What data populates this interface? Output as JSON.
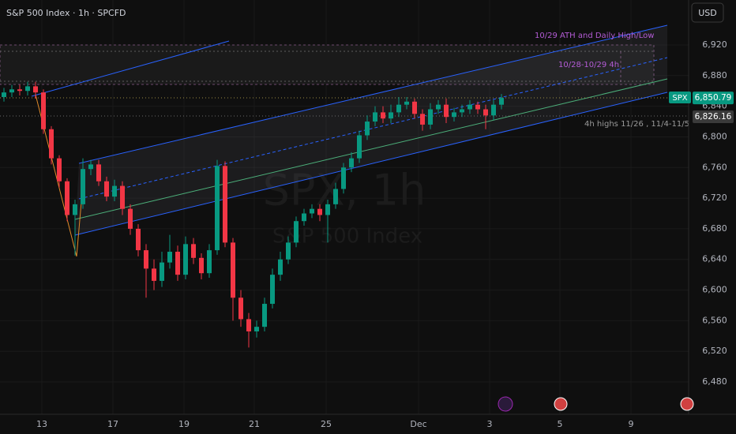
{
  "chart_data": {
    "type": "candlestick",
    "title": "S&P 500 Index · 1h · SPCFD",
    "watermark": "SPX, 1h",
    "watermark_subtitle": "S&P 500 Index",
    "currency": "USD",
    "symbol": "SPX",
    "annotations": [
      "10/29 ATH and Daily High/Low",
      "10/28-10/29 4h",
      "4h highs 11/26 , 11/4-11/5"
    ],
    "up_color": "#089981",
    "down_color": "#f23645",
    "grid": true,
    "open": [
      6852,
      6858,
      6862,
      6860,
      6866,
      6858,
      6810,
      6772,
      6742,
      6698,
      6712,
      6758,
      6764,
      6742,
      6722,
      6736,
      6706,
      6680,
      6652,
      6628,
      6612,
      6636,
      6650,
      6620,
      6660,
      6642,
      6622,
      6652,
      6762,
      6662,
      6590,
      6562,
      6546,
      6552,
      6582,
      6620,
      6640,
      6662,
      6690,
      6700,
      6706,
      6698,
      6712,
      6732,
      6760,
      6772,
      6802,
      6820,
      6832,
      6824,
      6832,
      6842,
      6846,
      6830,
      6816,
      6836,
      6842,
      6826,
      6832,
      6836,
      6842,
      6836,
      6828,
      6842
    ],
    "high": [
      6864,
      6868,
      6868,
      6872,
      6872,
      6862,
      6814,
      6776,
      6746,
      6718,
      6772,
      6770,
      6770,
      6748,
      6744,
      6742,
      6712,
      6686,
      6660,
      6640,
      6650,
      6672,
      6658,
      6670,
      6668,
      6648,
      6660,
      6770,
      6768,
      6668,
      6600,
      6570,
      6560,
      6590,
      6628,
      6650,
      6670,
      6696,
      6706,
      6712,
      6712,
      6718,
      6740,
      6766,
      6780,
      6808,
      6828,
      6840,
      6840,
      6842,
      6852,
      6852,
      6850,
      6836,
      6844,
      6848,
      6850,
      6838,
      6842,
      6848,
      6846,
      6842,
      6848,
      6856
    ],
    "low": [
      6846,
      6852,
      6854,
      6854,
      6850,
      6804,
      6764,
      6734,
      6690,
      6645,
      6706,
      6750,
      6736,
      6716,
      6716,
      6698,
      6672,
      6644,
      6590,
      6600,
      6604,
      6628,
      6612,
      6614,
      6634,
      6614,
      6616,
      6646,
      6656,
      6560,
      6552,
      6525,
      6538,
      6546,
      6576,
      6612,
      6634,
      6656,
      6684,
      6694,
      6690,
      6662,
      6706,
      6726,
      6754,
      6766,
      6796,
      6814,
      6818,
      6818,
      6826,
      6836,
      6824,
      6808,
      6810,
      6830,
      6818,
      6820,
      6826,
      6830,
      6830,
      6810,
      6822,
      6836
    ],
    "close": [
      6858,
      6862,
      6860,
      6866,
      6858,
      6810,
      6772,
      6742,
      6698,
      6712,
      6758,
      6764,
      6742,
      6722,
      6736,
      6706,
      6680,
      6652,
      6628,
      6612,
      6636,
      6650,
      6620,
      6660,
      6642,
      6622,
      6652,
      6762,
      6662,
      6590,
      6562,
      6546,
      6552,
      6582,
      6620,
      6640,
      6662,
      6690,
      6700,
      6706,
      6698,
      6712,
      6732,
      6760,
      6772,
      6802,
      6820,
      6832,
      6824,
      6832,
      6842,
      6846,
      6830,
      6816,
      6836,
      6842,
      6826,
      6832,
      6836,
      6842,
      6836,
      6828,
      6842,
      6850.79
    ],
    "last_price": {
      "value": 6850.79,
      "label": "6,850.79"
    },
    "marked_price": {
      "value": 6826.16,
      "label": "6,826.16"
    },
    "xlim": [
      -0.5,
      86.7
    ],
    "xticks": [
      {
        "value": 4.8,
        "label": "13"
      },
      {
        "value": 13.8,
        "label": "17"
      },
      {
        "value": 22.8,
        "label": "19"
      },
      {
        "value": 31.7,
        "label": "21"
      },
      {
        "value": 40.8,
        "label": "25"
      },
      {
        "value": 52.5,
        "label": "Dec"
      },
      {
        "value": 61.5,
        "label": "3"
      },
      {
        "value": 70.4,
        "label": "5"
      },
      {
        "value": 79.4,
        "label": "9"
      }
    ],
    "ylim": [
      6437.8,
      6978.7
    ],
    "yticks": [
      {
        "value": 6480,
        "label": "6,480"
      },
      {
        "value": 6520,
        "label": "6,520"
      },
      {
        "value": 6560,
        "label": "6,560"
      },
      {
        "value": 6600,
        "label": "6,600"
      },
      {
        "value": 6640,
        "label": "6,640"
      },
      {
        "value": 6680,
        "label": "6,680"
      },
      {
        "value": 6720,
        "label": "6,720"
      },
      {
        "value": 6760,
        "label": "6,760"
      },
      {
        "value": 6800,
        "label": "6,800"
      },
      {
        "value": 6840,
        "label": "6,840"
      },
      {
        "value": 6880,
        "label": "6,880"
      },
      {
        "value": 6920,
        "label": "6,920"
      }
    ]
  }
}
